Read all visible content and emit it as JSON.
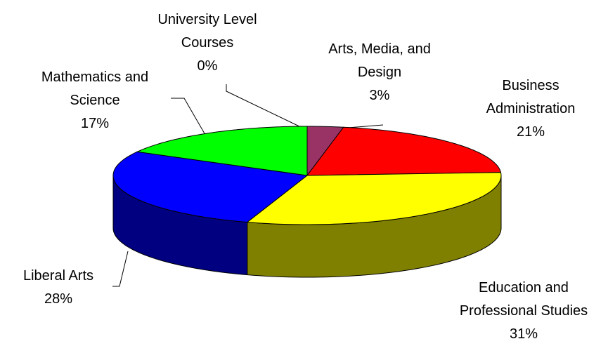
{
  "chart_data": {
    "type": "pie",
    "categories": [
      "University Level Courses",
      "Arts, Media, and Design",
      "Business Administration",
      "Education and Professional Studies",
      "Liberal Arts",
      "Mathematics and Science"
    ],
    "values": [
      0,
      3,
      21,
      31,
      28,
      17
    ],
    "value_labels": [
      "0%",
      "3%",
      "21%",
      "31%",
      "28%",
      "17%"
    ],
    "colors": [
      "#ff8080",
      "#993366",
      "#ff0000",
      "#ffff00",
      "#0000ff",
      "#00ff00"
    ]
  }
}
